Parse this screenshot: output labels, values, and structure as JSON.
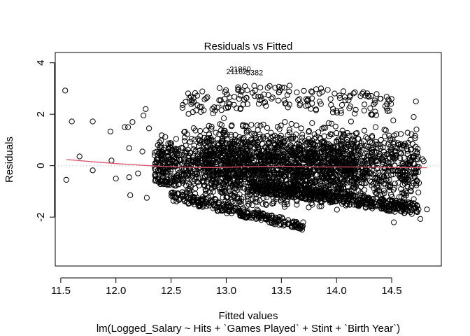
{
  "chart_data": {
    "type": "scatter",
    "title": "Residuals vs Fitted",
    "xlabel": "Fitted values",
    "subtitle": "lm(Logged_Salary ~ Hits + `Games Played` + Stint + `Birth Year`)",
    "ylabel": "Residuals",
    "xlim": [
      11.45,
      14.95
    ],
    "ylim": [
      -3.9,
      4.4
    ],
    "x_ticks": [
      11.5,
      12.0,
      12.5,
      13.0,
      13.5,
      14.0,
      14.5
    ],
    "x_tick_labels": [
      "11.5",
      "12.0",
      "12.5",
      "13.0",
      "13.5",
      "14.0",
      "14.5"
    ],
    "y_ticks": [
      -2,
      0,
      2,
      4
    ],
    "y_tick_labels": [
      "-2",
      "0",
      "2",
      "4"
    ],
    "reference_line_y": 0,
    "point_color": "#000000",
    "smooth_color": "#DF536B",
    "reference_color": "#BEBEBE",
    "outlier_points": [
      {
        "x": 11.54,
        "y": 2.92
      },
      {
        "x": 11.55,
        "y": -0.55
      },
      {
        "x": 11.6,
        "y": 1.72
      },
      {
        "x": 11.67,
        "y": 0.36
      },
      {
        "x": 11.79,
        "y": 1.72
      },
      {
        "x": 11.79,
        "y": -0.18
      },
      {
        "x": 11.95,
        "y": 1.33
      },
      {
        "x": 11.96,
        "y": 0.2
      },
      {
        "x": 12.0,
        "y": -0.5
      },
      {
        "x": 12.08,
        "y": 1.5
      },
      {
        "x": 12.11,
        "y": 1.5
      },
      {
        "x": 12.12,
        "y": -0.45
      },
      {
        "x": 12.13,
        "y": -1.15
      },
      {
        "x": 12.12,
        "y": 0.68
      },
      {
        "x": 12.15,
        "y": 1.7
      },
      {
        "x": 12.2,
        "y": -0.3
      },
      {
        "x": 12.24,
        "y": 0.55
      },
      {
        "x": 12.25,
        "y": 1.95
      },
      {
        "x": 12.27,
        "y": 2.2
      },
      {
        "x": 12.28,
        "y": -1.25
      },
      {
        "x": 12.3,
        "y": 1.45
      },
      {
        "x": 14.72,
        "y": 2.5
      },
      {
        "x": 14.78,
        "y": 0.25
      },
      {
        "x": 14.79,
        "y": 0.17
      },
      {
        "x": 14.76,
        "y": -2.07
      },
      {
        "x": 14.82,
        "y": -1.7
      },
      {
        "x": 14.7,
        "y": -1.3
      }
    ],
    "smooth_curve": [
      {
        "x": 11.55,
        "y": 0.24
      },
      {
        "x": 11.8,
        "y": 0.15
      },
      {
        "x": 12.0,
        "y": 0.08
      },
      {
        "x": 12.3,
        "y": 0.0
      },
      {
        "x": 12.6,
        "y": -0.06
      },
      {
        "x": 12.9,
        "y": -0.07
      },
      {
        "x": 13.2,
        "y": -0.04
      },
      {
        "x": 13.5,
        "y": -0.02
      },
      {
        "x": 13.8,
        "y": -0.05
      },
      {
        "x": 14.1,
        "y": -0.05
      },
      {
        "x": 14.4,
        "y": -0.06
      },
      {
        "x": 14.82,
        "y": -0.08
      }
    ],
    "annotations": [
      {
        "text": "21860",
        "x": 13.03,
        "y": 3.65
      },
      {
        "text": "21162",
        "x": 13.0,
        "y": 3.55
      },
      {
        "text": "5382",
        "x": 13.18,
        "y": 3.52
      }
    ]
  }
}
